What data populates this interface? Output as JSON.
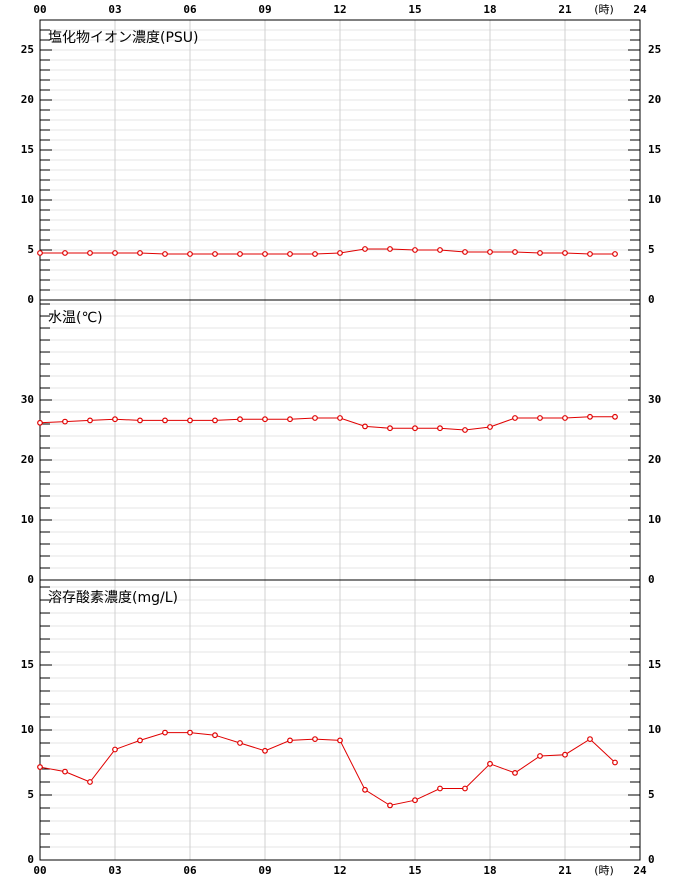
{
  "chart_data": [
    {
      "type": "line",
      "title": "塩化物イオン濃度(PSU)",
      "x_label": "(時)",
      "x": [
        0,
        1,
        2,
        3,
        4,
        5,
        6,
        7,
        8,
        9,
        10,
        11,
        12,
        13,
        14,
        15,
        16,
        17,
        18,
        19,
        20,
        21,
        22,
        23
      ],
      "series": [
        {
          "name": "塩化物イオン濃度",
          "color": "#e00000",
          "values": [
            4.7,
            4.7,
            4.7,
            4.7,
            4.7,
            4.6,
            4.6,
            4.6,
            4.6,
            4.6,
            4.6,
            4.6,
            4.7,
            5.1,
            5.1,
            5.0,
            5.0,
            4.8,
            4.8,
            4.8,
            4.7,
            4.7,
            4.6,
            4.6
          ]
        }
      ],
      "xlim": [
        0,
        24
      ],
      "xticks": [
        {
          "value": 0,
          "label": "00"
        },
        {
          "value": 3,
          "label": "03"
        },
        {
          "value": 6,
          "label": "06"
        },
        {
          "value": 9,
          "label": "09"
        },
        12,
        15,
        18,
        21,
        24
      ],
      "ylim": [
        0,
        28
      ],
      "yticks": [
        0,
        5,
        10,
        15,
        20,
        25
      ],
      "minor_step": 1,
      "grid": true
    },
    {
      "type": "line",
      "title": "水温(℃)",
      "x": [
        0,
        1,
        2,
        3,
        4,
        5,
        6,
        7,
        8,
        9,
        10,
        11,
        12,
        13,
        14,
        15,
        16,
        17,
        18,
        19,
        20,
        21,
        22,
        23
      ],
      "series": [
        {
          "name": "水温",
          "color": "#e00000",
          "values": [
            26.2,
            26.4,
            26.6,
            26.8,
            26.6,
            26.6,
            26.6,
            26.6,
            26.8,
            26.8,
            26.8,
            27.0,
            27.0,
            25.6,
            25.3,
            25.3,
            25.3,
            25.0,
            25.5,
            27.0,
            27.0,
            27.0,
            27.2,
            27.2
          ]
        }
      ],
      "xlim": [
        0,
        24
      ],
      "xticks": [
        {
          "value": 0,
          "label": "00"
        },
        {
          "value": 3,
          "label": "03"
        },
        {
          "value": 6,
          "label": "06"
        },
        {
          "value": 9,
          "label": "09"
        },
        12,
        15,
        18,
        21,
        24
      ],
      "ylim": [
        0,
        46.67
      ],
      "yticks": [
        0,
        10,
        20,
        30
      ],
      "minor_step": 2,
      "grid": true
    },
    {
      "type": "line",
      "title": "溶存酸素濃度(mg/L)",
      "x_label": "(時)",
      "x": [
        0,
        1,
        2,
        3,
        4,
        5,
        6,
        7,
        8,
        9,
        10,
        11,
        12,
        13,
        14,
        15,
        16,
        17,
        18,
        19,
        20,
        21,
        22,
        23
      ],
      "series": [
        {
          "name": "溶存酸素濃度",
          "color": "#e00000",
          "values": [
            7.15,
            6.8,
            6.0,
            8.5,
            9.2,
            9.8,
            9.8,
            9.6,
            9.0,
            8.4,
            9.2,
            9.3,
            9.2,
            5.4,
            4.2,
            4.6,
            5.5,
            5.5,
            7.4,
            6.7,
            8.0,
            8.1,
            9.3,
            7.5
          ]
        }
      ],
      "xlim": [
        0,
        24
      ],
      "xticks": [
        {
          "value": 0,
          "label": "00"
        },
        {
          "value": 3,
          "label": "03"
        },
        {
          "value": 6,
          "label": "06"
        },
        {
          "value": 9,
          "label": "09"
        },
        12,
        15,
        18,
        21,
        24
      ],
      "ylim": [
        0,
        21.54
      ],
      "yticks": [
        0,
        5,
        10,
        15
      ],
      "minor_step": 1,
      "grid": true
    }
  ]
}
